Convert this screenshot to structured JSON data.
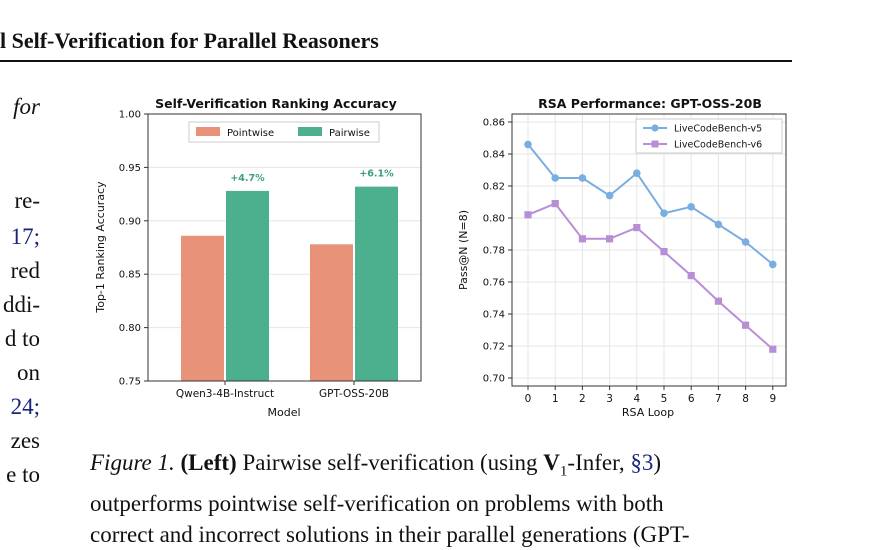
{
  "header": {
    "title": "l Self-Verification for Parallel Reasoners"
  },
  "left_column": {
    "lines": [
      "for",
      "re-",
      "17;",
      "red",
      "ddi-",
      "d to",
      "on",
      "24;",
      "zes",
      "e to"
    ]
  },
  "charts": {
    "left": {
      "title": "Self-Verification Ranking Accuracy",
      "ylabel": "Top-1 Ranking Accuracy",
      "xlabel": "Model",
      "legend": [
        "Pointwise",
        "Pairwise"
      ],
      "y_ticks": [
        "0.75",
        "0.80",
        "0.85",
        "0.90",
        "0.95",
        "1.00"
      ],
      "categories": [
        "Qwen3-4B-Instruct",
        "GPT-OSS-20B"
      ],
      "annotations": [
        "+4.7%",
        "+6.1%"
      ]
    },
    "right": {
      "title": "RSA Performance: GPT-OSS-20B",
      "ylabel": "Pass@N (N=8)",
      "xlabel": "RSA Loop",
      "legend": [
        "LiveCodeBench-v5",
        "LiveCodeBench-v6"
      ],
      "y_ticks": [
        "0.70",
        "0.72",
        "0.74",
        "0.76",
        "0.78",
        "0.80",
        "0.82",
        "0.84",
        "0.86"
      ],
      "x_ticks": [
        "0",
        "1",
        "2",
        "3",
        "4",
        "5",
        "6",
        "7",
        "8",
        "9"
      ]
    }
  },
  "chart_data": [
    {
      "type": "bar",
      "title": "Self-Verification Ranking Accuracy",
      "xlabel": "Model",
      "ylabel": "Top-1 Ranking Accuracy",
      "categories": [
        "Qwen3-4B-Instruct",
        "GPT-OSS-20B"
      ],
      "series": [
        {
          "name": "Pointwise",
          "values": [
            0.886,
            0.878
          ],
          "color": "#e8927a"
        },
        {
          "name": "Pairwise",
          "values": [
            0.928,
            0.932
          ],
          "color": "#4caf8e"
        }
      ],
      "annotations": [
        "+4.7%",
        "+6.1%"
      ],
      "ylim": [
        0.75,
        1.0
      ],
      "legend": "top-center",
      "grid": true
    },
    {
      "type": "line",
      "title": "RSA Performance: GPT-OSS-20B",
      "xlabel": "RSA Loop",
      "ylabel": "Pass@N (N=8)",
      "x": [
        0,
        1,
        2,
        3,
        4,
        5,
        6,
        7,
        8,
        9
      ],
      "series": [
        {
          "name": "LiveCodeBench-v5",
          "values": [
            0.846,
            0.825,
            0.825,
            0.814,
            0.828,
            0.803,
            0.807,
            0.796,
            0.785,
            0.771
          ],
          "color": "#7aaee0",
          "marker": "circle"
        },
        {
          "name": "LiveCodeBench-v6",
          "values": [
            0.802,
            0.809,
            0.787,
            0.787,
            0.794,
            0.779,
            0.764,
            0.748,
            0.733,
            0.718
          ],
          "color": "#b88fd6",
          "marker": "square"
        }
      ],
      "ylim": [
        0.7,
        0.86
      ],
      "legend": "top-right",
      "grid": true
    }
  ],
  "caption": {
    "fig_label": "Figure 1.",
    "left_label": "(Left)",
    "text1": " Pairwise self-verification (using ",
    "v_symbol": "V",
    "v_sub": "1",
    "text2": "-Infer, ",
    "section_ref": "§3",
    "text3": ")",
    "line2": "outperforms pointwise self-verification on problems with both",
    "line3": "correct and incorrect solutions in their parallel generations (GPT-"
  }
}
